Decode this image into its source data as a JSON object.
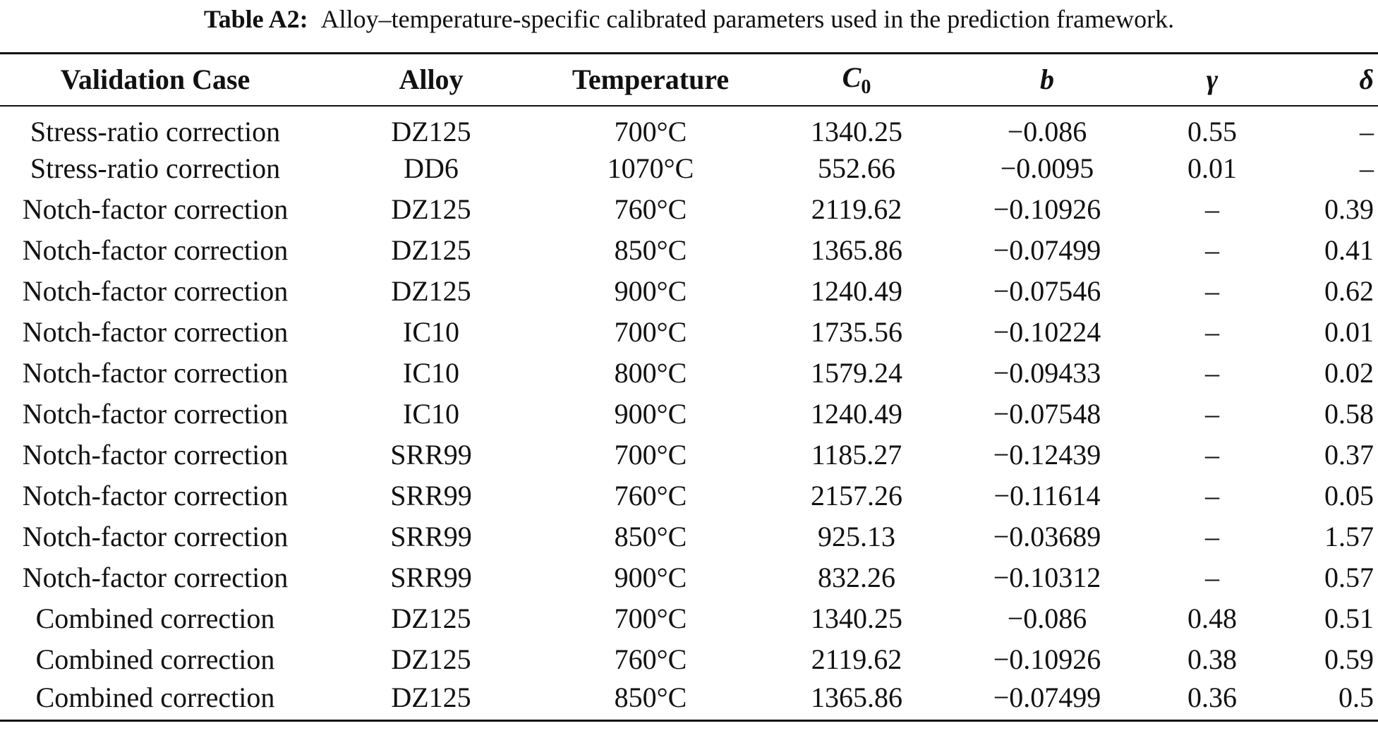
{
  "caption": {
    "label": "Table A2:",
    "text": "Alloy–temperature-specific calibrated parameters used in the prediction framework."
  },
  "table": {
    "headers": [
      {
        "text": "Validation Case"
      },
      {
        "text": "Alloy"
      },
      {
        "text": "Temperature"
      },
      {
        "text": "C",
        "subscript": "0"
      },
      {
        "text": "b"
      },
      {
        "text": "γ"
      },
      {
        "text": "δ"
      }
    ],
    "rows": [
      [
        "Stress-ratio correction",
        "DZ125",
        "700°C",
        "1340.25",
        "−0.086",
        "0.55",
        "–"
      ],
      [
        "Stress-ratio correction",
        "DD6",
        "1070°C",
        "552.66",
        "−0.0095",
        "0.01",
        "–"
      ],
      [
        "Notch-factor correction",
        "DZ125",
        "760°C",
        "2119.62",
        "−0.10926",
        "–",
        "0.39"
      ],
      [
        "Notch-factor correction",
        "DZ125",
        "850°C",
        "1365.86",
        "−0.07499",
        "–",
        "0.41"
      ],
      [
        "Notch-factor correction",
        "DZ125",
        "900°C",
        "1240.49",
        "−0.07546",
        "–",
        "0.62"
      ],
      [
        "Notch-factor correction",
        "IC10",
        "700°C",
        "1735.56",
        "−0.10224",
        "–",
        "0.01"
      ],
      [
        "Notch-factor correction",
        "IC10",
        "800°C",
        "1579.24",
        "−0.09433",
        "–",
        "0.02"
      ],
      [
        "Notch-factor correction",
        "IC10",
        "900°C",
        "1240.49",
        "−0.07548",
        "–",
        "0.58"
      ],
      [
        "Notch-factor correction",
        "SRR99",
        "700°C",
        "1185.27",
        "−0.12439",
        "–",
        "0.37"
      ],
      [
        "Notch-factor correction",
        "SRR99",
        "760°C",
        "2157.26",
        "−0.11614",
        "–",
        "0.05"
      ],
      [
        "Notch-factor correction",
        "SRR99",
        "850°C",
        "925.13",
        "−0.03689",
        "–",
        "1.57"
      ],
      [
        "Notch-factor correction",
        "SRR99",
        "900°C",
        "832.26",
        "−0.10312",
        "–",
        "0.57"
      ],
      [
        "Combined correction",
        "DZ125",
        "700°C",
        "1340.25",
        "−0.086",
        "0.48",
        "0.51"
      ],
      [
        "Combined correction",
        "DZ125",
        "760°C",
        "2119.62",
        "−0.10926",
        "0.38",
        "0.59"
      ],
      [
        "Combined correction",
        "DZ125",
        "850°C",
        "1365.86",
        "−0.07499",
        "0.36",
        "0.5"
      ]
    ]
  }
}
